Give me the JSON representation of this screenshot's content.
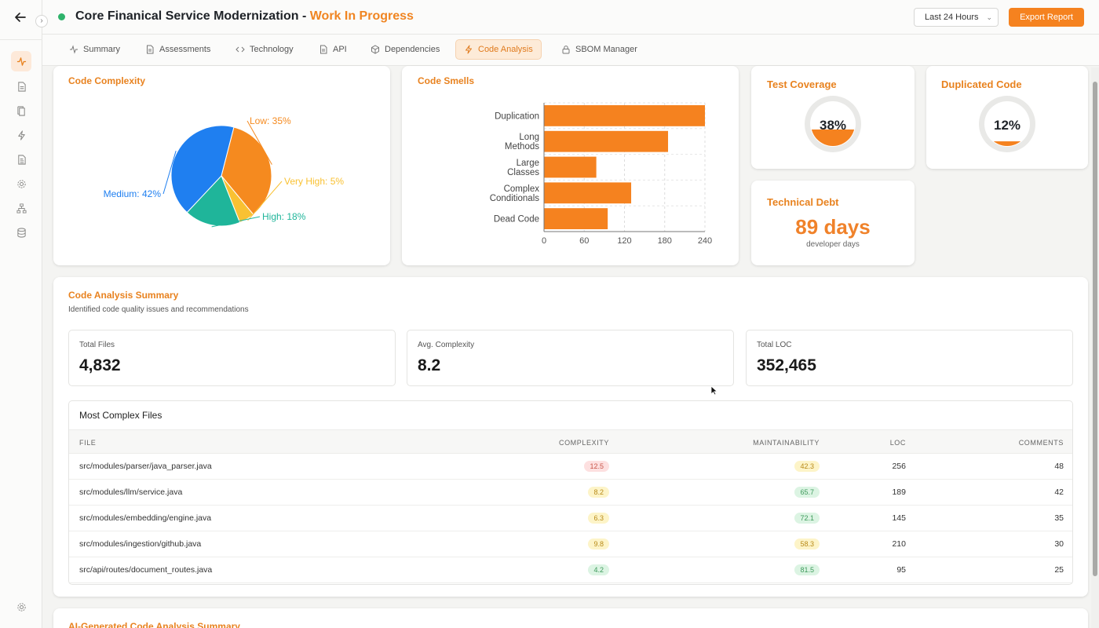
{
  "header": {
    "title": "Core Finanical Service Modernization - ",
    "status": "Work In Progress",
    "range_label": "Last 24 Hours",
    "export_label": "Export Report"
  },
  "tabs": [
    {
      "label": "Summary",
      "icon": "activity-icon"
    },
    {
      "label": "Assessments",
      "icon": "document-icon"
    },
    {
      "label": "Technology",
      "icon": "code-icon"
    },
    {
      "label": "API",
      "icon": "file-icon"
    },
    {
      "label": "Dependencies",
      "icon": "box-icon"
    },
    {
      "label": "Code Analysis",
      "icon": "bolt-icon",
      "active": true
    },
    {
      "label": "SBOM Manager",
      "icon": "lock-icon"
    }
  ],
  "sidebar_icons": [
    "activity-icon",
    "document-icon",
    "copy-icon",
    "bolt-icon",
    "file-icon",
    "gear-icon",
    "network-icon",
    "database-icon"
  ],
  "complexity": {
    "title": "Code Complexity",
    "chart_data": {
      "type": "pie",
      "slices": [
        {
          "label": "Low: 35%",
          "value": 35,
          "color": "#f58a1f"
        },
        {
          "label": "Very High: 5%",
          "value": 5,
          "color": "#f9c132"
        },
        {
          "label": "High: 18%",
          "value": 18,
          "color": "#1fb59a"
        },
        {
          "label": "Medium: 42%",
          "value": 42,
          "color": "#1f7ff0"
        }
      ]
    }
  },
  "smells": {
    "title": "Code Smells",
    "chart_data": {
      "type": "bar",
      "orientation": "horizontal",
      "categories": [
        "Duplication",
        "Long Methods",
        "Large Classes",
        "Complex Conditionals",
        "Dead Code"
      ],
      "category_lines": [
        [
          "Duplication"
        ],
        [
          "Long",
          "Methods"
        ],
        [
          "Large",
          "Classes"
        ],
        [
          "Complex",
          "Conditionals"
        ],
        [
          "Dead Code"
        ]
      ],
      "values": [
        240,
        185,
        78,
        130,
        95
      ],
      "xlim": [
        0,
        240
      ],
      "xticks": [
        0,
        60,
        120,
        180,
        240
      ],
      "grid": true,
      "color": "#f5821f"
    }
  },
  "coverage": {
    "title": "Test Coverage",
    "value": 38,
    "label": "38%"
  },
  "duplicated": {
    "title": "Duplicated Code",
    "value": 12,
    "label": "12%"
  },
  "debt": {
    "title": "Technical Debt",
    "value": "89 days",
    "sub": "developer days"
  },
  "summary": {
    "title": "Code Analysis Summary",
    "subtitle": "Identified code quality issues and recommendations",
    "stats": [
      {
        "label": "Total Files",
        "value": "4,832"
      },
      {
        "label": "Avg. Complexity",
        "value": "8.2"
      },
      {
        "label": "Total LOC",
        "value": "352,465"
      }
    ],
    "table": {
      "title": "Most Complex Files",
      "columns": [
        "FILE",
        "COMPLEXITY",
        "MAINTAINABILITY",
        "LOC",
        "COMMENTS"
      ],
      "rows": [
        {
          "file": "src/modules/parser/java_parser.java",
          "complexity": "12.5",
          "c_level": "red",
          "maintainability": "42.3",
          "m_level": "yellow",
          "loc": "256",
          "comments": "48"
        },
        {
          "file": "src/modules/llm/service.java",
          "complexity": "8.2",
          "c_level": "yellow",
          "maintainability": "65.7",
          "m_level": "green",
          "loc": "189",
          "comments": "42"
        },
        {
          "file": "src/modules/embedding/engine.java",
          "complexity": "6.3",
          "c_level": "yellow",
          "maintainability": "72.1",
          "m_level": "green",
          "loc": "145",
          "comments": "35"
        },
        {
          "file": "src/modules/ingestion/github.java",
          "complexity": "9.8",
          "c_level": "yellow",
          "maintainability": "58.3",
          "m_level": "yellow",
          "loc": "210",
          "comments": "30"
        },
        {
          "file": "src/api/routes/document_routes.java",
          "complexity": "4.2",
          "c_level": "green",
          "maintainability": "81.5",
          "m_level": "green",
          "loc": "95",
          "comments": "25"
        }
      ]
    }
  },
  "ai_summary": {
    "title": "AI-Generated Code Analysis Summary"
  }
}
